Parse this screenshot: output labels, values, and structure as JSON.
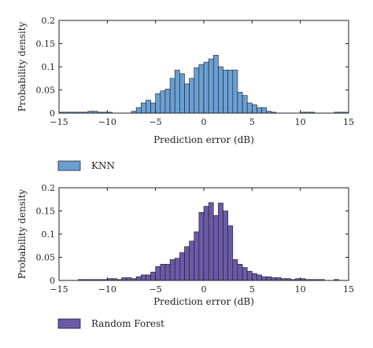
{
  "chart_data": [
    {
      "type": "bar",
      "legend": "KNN",
      "legend_placement": "bottom-left",
      "color": "#6a9fd4",
      "xlabel": "Prediction error (dB)",
      "ylabel": "Probability density",
      "xlim": [
        -15,
        15
      ],
      "ylim": [
        0,
        0.2
      ],
      "xticks": [
        -15,
        -10,
        -5,
        0,
        5,
        10,
        15
      ],
      "yticks": [
        0,
        0.05,
        0.1,
        0.15,
        0.2
      ],
      "xtick_labels": [
        "−15",
        "−10",
        "−5",
        "0",
        "5",
        "10",
        "15"
      ],
      "ytick_labels": [
        "0",
        "0.05",
        "0.1",
        "0.15",
        "0.2"
      ],
      "grid": false,
      "bin_width": 0.5,
      "bins": [
        {
          "x": -15,
          "y": 0.002
        },
        {
          "x": -14.5,
          "y": 0.002
        },
        {
          "x": -14,
          "y": 0.002
        },
        {
          "x": -13.5,
          "y": 0.002
        },
        {
          "x": -13,
          "y": 0.002
        },
        {
          "x": -12.5,
          "y": 0.002
        },
        {
          "x": -12,
          "y": 0.004
        },
        {
          "x": -11.5,
          "y": 0.004
        },
        {
          "x": -11,
          "y": 0.002
        },
        {
          "x": -10.5,
          "y": 0.002
        },
        {
          "x": -10,
          "y": 0.002
        },
        {
          "x": -7.5,
          "y": 0.004
        },
        {
          "x": -7,
          "y": 0.012
        },
        {
          "x": -6.5,
          "y": 0.022
        },
        {
          "x": -6,
          "y": 0.028
        },
        {
          "x": -5.5,
          "y": 0.022
        },
        {
          "x": -5,
          "y": 0.042
        },
        {
          "x": -4.5,
          "y": 0.048
        },
        {
          "x": -4,
          "y": 0.052
        },
        {
          "x": -3.5,
          "y": 0.075
        },
        {
          "x": -3,
          "y": 0.093
        },
        {
          "x": -2.5,
          "y": 0.085
        },
        {
          "x": -2,
          "y": 0.063
        },
        {
          "x": -1.5,
          "y": 0.075
        },
        {
          "x": -1,
          "y": 0.098
        },
        {
          "x": -0.5,
          "y": 0.105
        },
        {
          "x": 0,
          "y": 0.11
        },
        {
          "x": 0.5,
          "y": 0.117
        },
        {
          "x": 1,
          "y": 0.125
        },
        {
          "x": 1.5,
          "y": 0.1
        },
        {
          "x": 2,
          "y": 0.093
        },
        {
          "x": 2.5,
          "y": 0.093
        },
        {
          "x": 3,
          "y": 0.093
        },
        {
          "x": 3.5,
          "y": 0.045
        },
        {
          "x": 4,
          "y": 0.038
        },
        {
          "x": 4.5,
          "y": 0.022
        },
        {
          "x": 5,
          "y": 0.018
        },
        {
          "x": 5.5,
          "y": 0.012
        },
        {
          "x": 6,
          "y": 0.012
        },
        {
          "x": 6.5,
          "y": 0.004
        },
        {
          "x": 7,
          "y": 0.002
        },
        {
          "x": 10,
          "y": 0.002
        },
        {
          "x": 10.5,
          "y": 0.002
        },
        {
          "x": 11,
          "y": 0.002
        },
        {
          "x": 13.5,
          "y": 0.002
        },
        {
          "x": 14,
          "y": 0.002
        },
        {
          "x": 14.5,
          "y": 0.002
        }
      ]
    },
    {
      "type": "bar",
      "legend": "Random Forest",
      "legend_placement": "bottom-left",
      "color": "#6a5ba8",
      "xlabel": "Prediction error (dB)",
      "ylabel": "Probability density",
      "xlim": [
        -15,
        15
      ],
      "ylim": [
        0,
        0.2
      ],
      "xticks": [
        -15,
        -10,
        -5,
        0,
        5,
        10,
        15
      ],
      "yticks": [
        0,
        0.05,
        0.1,
        0.15,
        0.2
      ],
      "xtick_labels": [
        "−15",
        "−10",
        "−5",
        "0",
        "5",
        "10",
        "15"
      ],
      "ytick_labels": [
        "0",
        "0.05",
        "0.1",
        "0.15",
        "0.2"
      ],
      "grid": false,
      "bin_width": 0.5,
      "bins": [
        {
          "x": -13,
          "y": 0.002
        },
        {
          "x": -12.5,
          "y": 0.002
        },
        {
          "x": -12,
          "y": 0.002
        },
        {
          "x": -11.5,
          "y": 0.002
        },
        {
          "x": -11,
          "y": 0.002
        },
        {
          "x": -10.5,
          "y": 0.002
        },
        {
          "x": -10,
          "y": 0.004
        },
        {
          "x": -9.5,
          "y": 0.004
        },
        {
          "x": -9,
          "y": 0.002
        },
        {
          "x": -8.5,
          "y": 0.006
        },
        {
          "x": -8,
          "y": 0.006
        },
        {
          "x": -7.5,
          "y": 0.004
        },
        {
          "x": -7,
          "y": 0.008
        },
        {
          "x": -6.5,
          "y": 0.012
        },
        {
          "x": -6,
          "y": 0.012
        },
        {
          "x": -5.5,
          "y": 0.018
        },
        {
          "x": -5,
          "y": 0.03
        },
        {
          "x": -4.5,
          "y": 0.035
        },
        {
          "x": -4,
          "y": 0.035
        },
        {
          "x": -3.5,
          "y": 0.045
        },
        {
          "x": -3,
          "y": 0.048
        },
        {
          "x": -2.5,
          "y": 0.06
        },
        {
          "x": -2,
          "y": 0.073
        },
        {
          "x": -1.5,
          "y": 0.085
        },
        {
          "x": -1,
          "y": 0.105
        },
        {
          "x": -0.5,
          "y": 0.147
        },
        {
          "x": 0,
          "y": 0.16
        },
        {
          "x": 0.5,
          "y": 0.168
        },
        {
          "x": 1,
          "y": 0.14
        },
        {
          "x": 1.5,
          "y": 0.167
        },
        {
          "x": 2,
          "y": 0.15
        },
        {
          "x": 2.5,
          "y": 0.118
        },
        {
          "x": 3,
          "y": 0.045
        },
        {
          "x": 3.5,
          "y": 0.035
        },
        {
          "x": 4,
          "y": 0.028
        },
        {
          "x": 4.5,
          "y": 0.02
        },
        {
          "x": 5,
          "y": 0.015
        },
        {
          "x": 5.5,
          "y": 0.012
        },
        {
          "x": 6,
          "y": 0.008
        },
        {
          "x": 6.5,
          "y": 0.008
        },
        {
          "x": 7,
          "y": 0.006
        },
        {
          "x": 7.5,
          "y": 0.006
        },
        {
          "x": 8,
          "y": 0.004
        },
        {
          "x": 8.5,
          "y": 0.004
        },
        {
          "x": 9,
          "y": 0.002
        },
        {
          "x": 9.5,
          "y": 0.004
        },
        {
          "x": 10,
          "y": 0.004
        },
        {
          "x": 10.5,
          "y": 0.002
        },
        {
          "x": 11,
          "y": 0.002
        },
        {
          "x": 11.5,
          "y": 0.002
        },
        {
          "x": 12,
          "y": 0.002
        },
        {
          "x": 13.5,
          "y": 0.002
        }
      ]
    }
  ]
}
